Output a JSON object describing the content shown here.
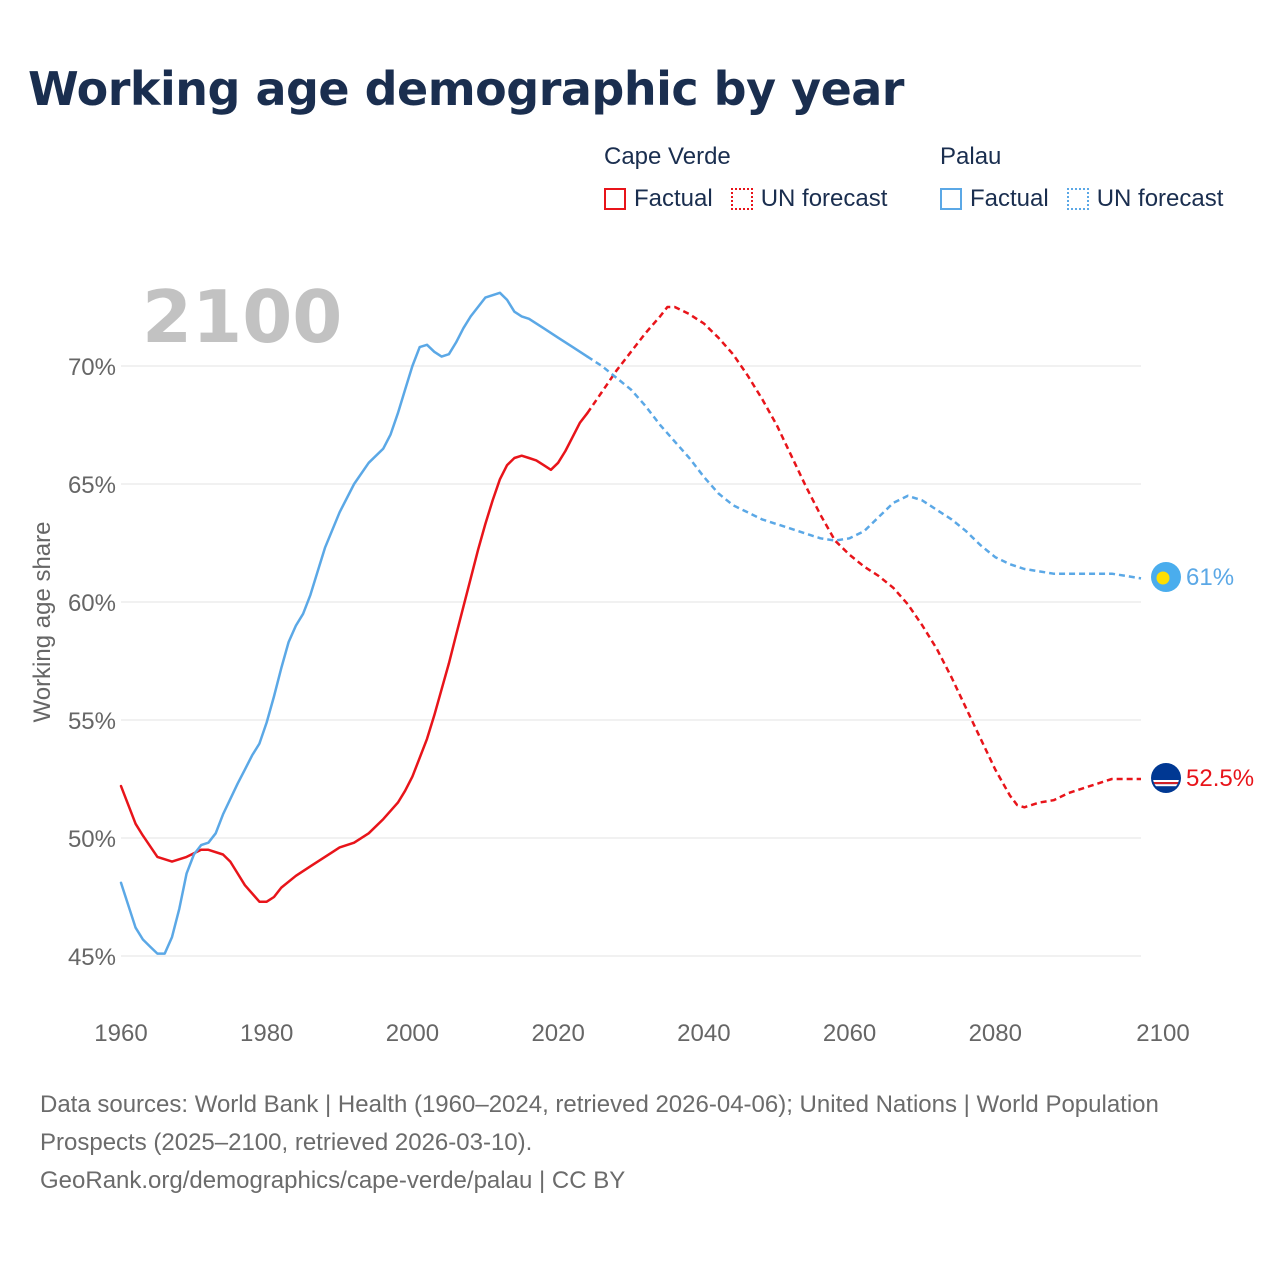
{
  "title": "Working age demographic by year",
  "legend": {
    "groups": [
      {
        "name": "Cape Verde",
        "factual_label": "Factual",
        "forecast_label": "UN forecast",
        "color": "#e8141a"
      },
      {
        "name": "Palau",
        "factual_label": "Factual",
        "forecast_label": "UN forecast",
        "color": "#5ba8e6"
      }
    ]
  },
  "footer": {
    "sources": "Data sources: World Bank | Health (1960–2024, retrieved 2026-04-06); United Nations | World Population Prospects (2025–2100, retrieved 2026-03-10).",
    "link": "GeoRank.org/demographics/cape-verde/palau | CC BY"
  },
  "chart_data": {
    "type": "line",
    "year_watermark": "2100",
    "ylabel": "Working age share",
    "xlim": [
      1960,
      2100
    ],
    "ylim": [
      45,
      72
    ],
    "x_ticks": [
      "1960",
      "1980",
      "2000",
      "2020",
      "2040",
      "2060",
      "2080",
      "2100"
    ],
    "y_ticks": [
      {
        "value": 45,
        "label": "45%"
      },
      {
        "value": 50,
        "label": "50%"
      },
      {
        "value": 55,
        "label": "55%"
      },
      {
        "value": 60,
        "label": "60%"
      },
      {
        "value": 65,
        "label": "65%"
      },
      {
        "value": 70,
        "label": "70%"
      }
    ],
    "forecast_start": 2024,
    "series": [
      {
        "name": "Cape Verde",
        "color": "#e8141a",
        "end_label": "52.5%",
        "points": [
          [
            1960,
            52.2
          ],
          [
            1962,
            50.6
          ],
          [
            1963,
            50.1
          ],
          [
            1965,
            49.2
          ],
          [
            1967,
            49.0
          ],
          [
            1969,
            49.2
          ],
          [
            1971,
            49.5
          ],
          [
            1972,
            49.5
          ],
          [
            1974,
            49.3
          ],
          [
            1975,
            49.0
          ],
          [
            1976,
            48.5
          ],
          [
            1977,
            48.0
          ],
          [
            1979,
            47.3
          ],
          [
            1980,
            47.3
          ],
          [
            1981,
            47.5
          ],
          [
            1982,
            47.9
          ],
          [
            1984,
            48.4
          ],
          [
            1986,
            48.8
          ],
          [
            1989,
            49.4
          ],
          [
            1990,
            49.6
          ],
          [
            1992,
            49.8
          ],
          [
            1994,
            50.2
          ],
          [
            1996,
            50.8
          ],
          [
            1998,
            51.5
          ],
          [
            1999,
            52.0
          ],
          [
            2000,
            52.6
          ],
          [
            2001,
            53.4
          ],
          [
            2002,
            54.2
          ],
          [
            2003,
            55.2
          ],
          [
            2004,
            56.3
          ],
          [
            2005,
            57.4
          ],
          [
            2006,
            58.6
          ],
          [
            2007,
            59.8
          ],
          [
            2008,
            61.0
          ],
          [
            2009,
            62.2
          ],
          [
            2010,
            63.3
          ],
          [
            2011,
            64.3
          ],
          [
            2012,
            65.2
          ],
          [
            2013,
            65.8
          ],
          [
            2014,
            66.1
          ],
          [
            2015,
            66.2
          ],
          [
            2016,
            66.1
          ],
          [
            2017,
            66.0
          ],
          [
            2018,
            65.8
          ],
          [
            2019,
            65.6
          ],
          [
            2020,
            65.9
          ],
          [
            2021,
            66.4
          ],
          [
            2022,
            67.0
          ],
          [
            2023,
            67.6
          ],
          [
            2024,
            68.0
          ],
          [
            2026,
            68.9
          ],
          [
            2028,
            69.8
          ],
          [
            2030,
            70.6
          ],
          [
            2032,
            71.4
          ],
          [
            2034,
            72.1
          ],
          [
            2035,
            72.5
          ],
          [
            2036,
            72.5
          ],
          [
            2038,
            72.2
          ],
          [
            2040,
            71.8
          ],
          [
            2042,
            71.2
          ],
          [
            2044,
            70.5
          ],
          [
            2046,
            69.6
          ],
          [
            2048,
            68.6
          ],
          [
            2050,
            67.5
          ],
          [
            2052,
            66.2
          ],
          [
            2054,
            64.9
          ],
          [
            2056,
            63.7
          ],
          [
            2058,
            62.6
          ],
          [
            2060,
            62.0
          ],
          [
            2062,
            61.5
          ],
          [
            2064,
            61.1
          ],
          [
            2066,
            60.6
          ],
          [
            2068,
            59.9
          ],
          [
            2070,
            59.0
          ],
          [
            2072,
            58.0
          ],
          [
            2074,
            56.8
          ],
          [
            2076,
            55.5
          ],
          [
            2078,
            54.2
          ],
          [
            2080,
            52.9
          ],
          [
            2082,
            51.8
          ],
          [
            2083,
            51.4
          ],
          [
            2084,
            51.3
          ],
          [
            2086,
            51.5
          ],
          [
            2088,
            51.6
          ],
          [
            2090,
            51.9
          ],
          [
            2092,
            52.1
          ],
          [
            2094,
            52.3
          ],
          [
            2096,
            52.5
          ],
          [
            2098,
            52.5
          ],
          [
            2100,
            52.5
          ]
        ]
      },
      {
        "name": "Palau",
        "color": "#5ba8e6",
        "end_label": "61%",
        "points": [
          [
            1960,
            48.1
          ],
          [
            1962,
            46.2
          ],
          [
            1963,
            45.7
          ],
          [
            1964,
            45.4
          ],
          [
            1965,
            45.1
          ],
          [
            1966,
            45.1
          ],
          [
            1967,
            45.8
          ],
          [
            1968,
            47.0
          ],
          [
            1969,
            48.5
          ],
          [
            1970,
            49.3
          ],
          [
            1971,
            49.7
          ],
          [
            1972,
            49.8
          ],
          [
            1973,
            50.2
          ],
          [
            1974,
            51.0
          ],
          [
            1976,
            52.3
          ],
          [
            1977,
            52.9
          ],
          [
            1978,
            53.5
          ],
          [
            1979,
            54.0
          ],
          [
            1980,
            54.9
          ],
          [
            1981,
            56.0
          ],
          [
            1982,
            57.2
          ],
          [
            1983,
            58.3
          ],
          [
            1984,
            59.0
          ],
          [
            1985,
            59.5
          ],
          [
            1986,
            60.3
          ],
          [
            1987,
            61.3
          ],
          [
            1988,
            62.3
          ],
          [
            1990,
            63.8
          ],
          [
            1992,
            65.0
          ],
          [
            1994,
            65.9
          ],
          [
            1996,
            66.5
          ],
          [
            1997,
            67.1
          ],
          [
            1998,
            68.0
          ],
          [
            1999,
            69.0
          ],
          [
            2000,
            70.0
          ],
          [
            2001,
            70.8
          ],
          [
            2002,
            70.9
          ],
          [
            2003,
            70.6
          ],
          [
            2004,
            70.4
          ],
          [
            2005,
            70.5
          ],
          [
            2006,
            71.0
          ],
          [
            2007,
            71.6
          ],
          [
            2008,
            72.1
          ],
          [
            2009,
            72.5
          ],
          [
            2010,
            72.9
          ],
          [
            2011,
            73.0
          ],
          [
            2012,
            73.1
          ],
          [
            2013,
            72.8
          ],
          [
            2014,
            72.3
          ],
          [
            2015,
            72.1
          ],
          [
            2016,
            72.0
          ],
          [
            2018,
            71.6
          ],
          [
            2020,
            71.2
          ],
          [
            2022,
            70.8
          ],
          [
            2024,
            70.4
          ],
          [
            2026,
            70.0
          ],
          [
            2028,
            69.5
          ],
          [
            2030,
            69.0
          ],
          [
            2032,
            68.3
          ],
          [
            2034,
            67.5
          ],
          [
            2036,
            66.8
          ],
          [
            2038,
            66.1
          ],
          [
            2040,
            65.3
          ],
          [
            2042,
            64.6
          ],
          [
            2044,
            64.1
          ],
          [
            2046,
            63.8
          ],
          [
            2048,
            63.5
          ],
          [
            2050,
            63.3
          ],
          [
            2052,
            63.1
          ],
          [
            2054,
            62.9
          ],
          [
            2056,
            62.7
          ],
          [
            2058,
            62.6
          ],
          [
            2060,
            62.7
          ],
          [
            2062,
            63.0
          ],
          [
            2064,
            63.6
          ],
          [
            2066,
            64.2
          ],
          [
            2068,
            64.5
          ],
          [
            2070,
            64.3
          ],
          [
            2072,
            63.9
          ],
          [
            2074,
            63.5
          ],
          [
            2076,
            63.0
          ],
          [
            2078,
            62.4
          ],
          [
            2080,
            61.9
          ],
          [
            2082,
            61.6
          ],
          [
            2084,
            61.4
          ],
          [
            2086,
            61.3
          ],
          [
            2088,
            61.2
          ],
          [
            2090,
            61.2
          ],
          [
            2092,
            61.2
          ],
          [
            2094,
            61.2
          ],
          [
            2096,
            61.2
          ],
          [
            2098,
            61.1
          ],
          [
            2100,
            61.0
          ]
        ]
      }
    ]
  }
}
